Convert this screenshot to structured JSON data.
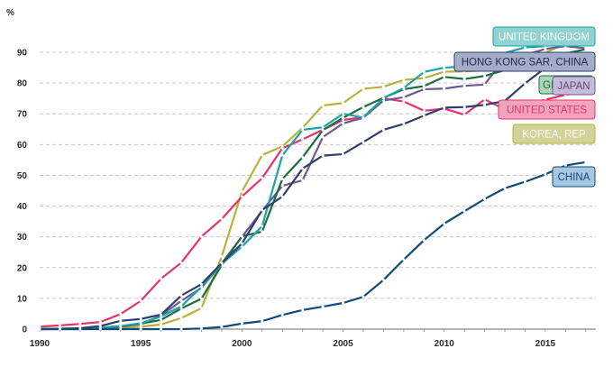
{
  "chart_data": {
    "type": "line",
    "unit_label": "%",
    "xlim": [
      1990,
      2017.5
    ],
    "ylim": [
      0,
      92
    ],
    "x_ticks": [
      "1990",
      "1995",
      "2000",
      "2005",
      "2010",
      "2015"
    ],
    "y_ticks": [
      "0",
      "10",
      "20",
      "30",
      "40",
      "50",
      "60",
      "70",
      "80",
      "90"
    ],
    "grid": "horizontal dashed",
    "x": [
      1990,
      1991,
      1992,
      1993,
      1994,
      1995,
      1996,
      1997,
      1998,
      1999,
      2000,
      2001,
      2002,
      2003,
      2004,
      2005,
      2006,
      2007,
      2008,
      2009,
      2010,
      2011,
      2012,
      2013,
      2014,
      2015,
      2016,
      2017
    ],
    "series": [
      {
        "name": "KOREA, REP",
        "color": "#b4b43a",
        "label_fill": "#d2d29a",
        "label_text": "#ffffff",
        "values": [
          0.0,
          0.0,
          0.1,
          0.3,
          0.3,
          0.8,
          1.5,
          3.6,
          6.8,
          23.6,
          44.7,
          56.6,
          59.4,
          65.5,
          72.7,
          73.5,
          78.1,
          78.8,
          81.0,
          81.6,
          83.7,
          83.8,
          84.1,
          84.8,
          87.6,
          89.9,
          92.8,
          95.1
        ]
      },
      {
        "name": "UNITED STATES",
        "color": "#e8336a",
        "label_fill": "#f4a3be",
        "label_text": "#e8336a",
        "values": [
          0.8,
          1.2,
          1.7,
          2.3,
          4.9,
          9.2,
          16.4,
          21.6,
          30.1,
          35.8,
          43.1,
          49.1,
          58.8,
          61.7,
          64.8,
          68.0,
          68.9,
          75.0,
          74.0,
          71.0,
          71.7,
          69.7,
          74.7,
          71.4,
          73.0,
          74.6,
          76.2,
          77.0
        ]
      },
      {
        "name": "JAPAN",
        "color": "#6e5a96",
        "label_fill": "#c7bcd8",
        "label_text": "#5a4a7e",
        "values": [
          0.0,
          0.0,
          0.0,
          0.4,
          0.8,
          1.6,
          4.4,
          9.2,
          13.4,
          21.4,
          30.0,
          38.5,
          46.6,
          48.4,
          62.4,
          66.9,
          68.7,
          74.3,
          75.4,
          78.0,
          78.2,
          79.1,
          79.5,
          88.2,
          89.1,
          91.1,
          92.0,
          91.3
        ]
      },
      {
        "name": "GERMANY",
        "color": "#1f6b3d",
        "label_fill": "#a9d6b9",
        "label_text": "#1f6b3d",
        "values": [
          0.1,
          0.1,
          0.2,
          0.5,
          0.9,
          1.8,
          3.0,
          6.7,
          9.9,
          20.8,
          30.2,
          31.7,
          48.8,
          55.9,
          64.7,
          68.7,
          72.2,
          75.2,
          78.0,
          79.0,
          82.0,
          81.3,
          82.3,
          84.2,
          86.2,
          87.6,
          89.6,
          91.0
        ]
      },
      {
        "name": "UNITED KINGDOM",
        "color": "#1ba3a6",
        "label_fill": "#8fd4d3",
        "label_text": "#ffffff",
        "values": [
          0.1,
          0.1,
          0.2,
          0.5,
          1.0,
          1.9,
          4.1,
          7.4,
          13.7,
          21.2,
          26.8,
          33.5,
          56.5,
          64.8,
          65.6,
          70.0,
          68.8,
          75.1,
          78.4,
          83.6,
          85.0,
          85.4,
          87.5,
          89.8,
          91.6,
          92.0,
          94.8,
          94.6
        ]
      },
      {
        "name": "HONG KONG SAR, CHINA",
        "color": "#2f3e6d",
        "label_fill": "#a3acc9",
        "label_text": "#1e2a50",
        "values": [
          0.0,
          0.1,
          0.3,
          1.0,
          2.7,
          3.3,
          4.7,
          10.9,
          14.6,
          21.5,
          27.8,
          38.7,
          43.1,
          52.2,
          56.4,
          56.9,
          60.8,
          64.8,
          66.7,
          69.4,
          72.0,
          72.2,
          72.9,
          74.2,
          79.9,
          84.9,
          87.3,
          89.4
        ]
      },
      {
        "name": "CHINA",
        "color": "#0f4c7a",
        "label_fill": "#a6c6e2",
        "label_text": "#0f4c7a",
        "values": [
          0.0,
          0.0,
          0.0,
          0.0,
          0.0,
          0.0,
          0.0,
          0.0,
          0.2,
          0.7,
          1.8,
          2.6,
          4.6,
          6.2,
          7.3,
          8.5,
          10.5,
          16.0,
          22.6,
          28.9,
          34.3,
          38.3,
          42.3,
          45.8,
          47.9,
          50.3,
          53.2,
          54.3
        ]
      }
    ]
  }
}
